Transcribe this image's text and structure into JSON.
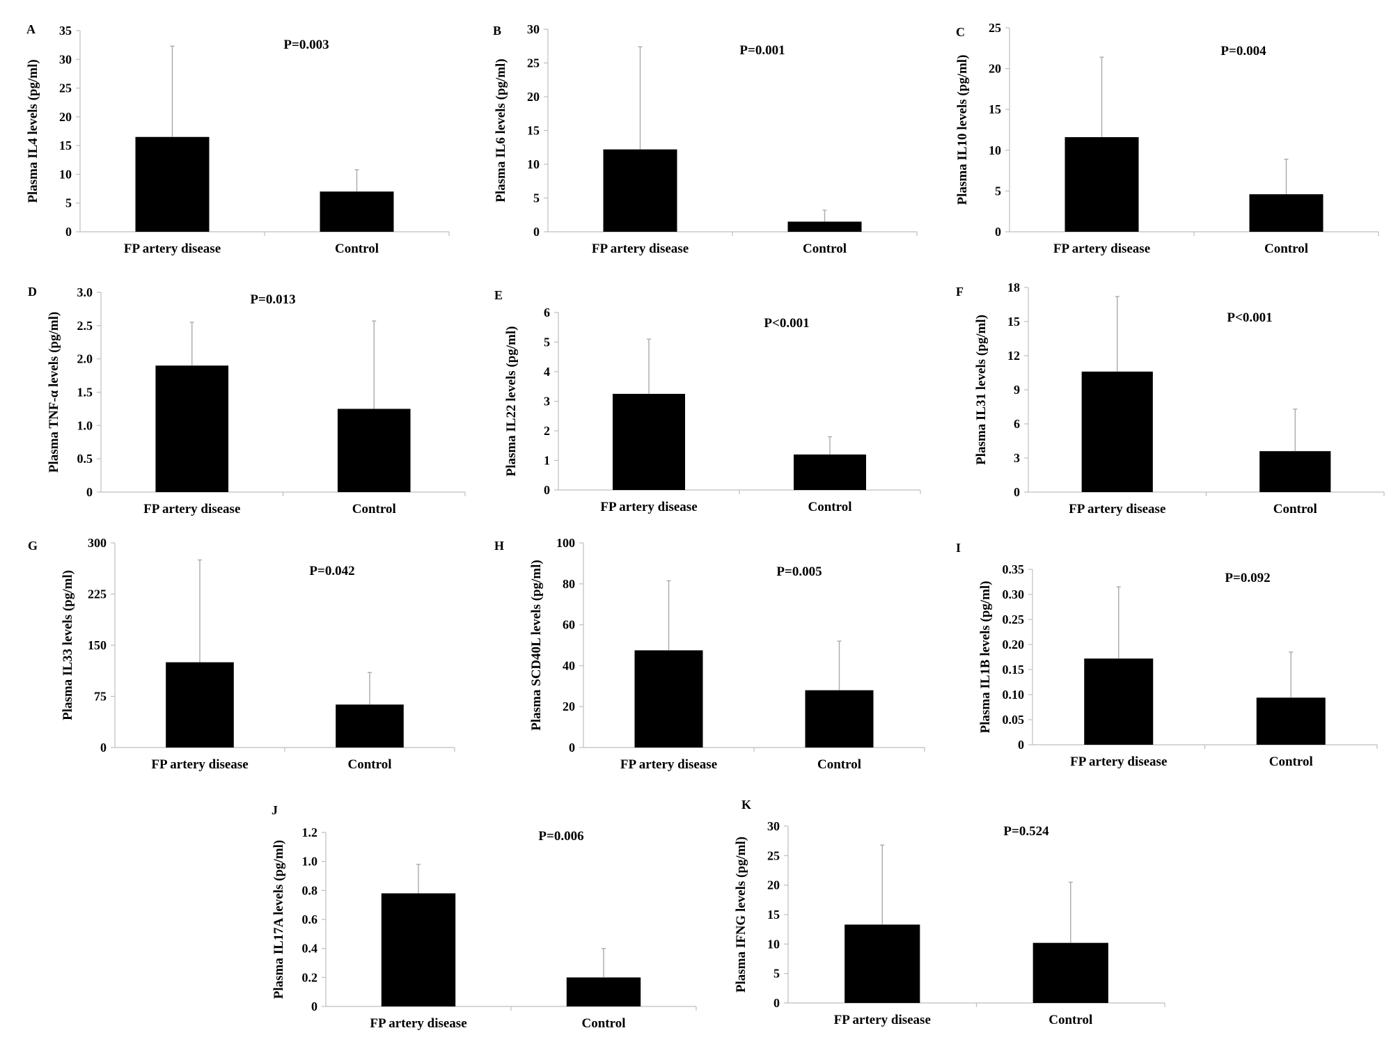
{
  "chart_data": [
    {
      "type": "bar",
      "panel": "A",
      "categories": [
        "FP artery disease",
        "Control"
      ],
      "values": [
        16.5,
        7.0
      ],
      "errors": [
        15.8,
        3.8
      ],
      "ylabel": "Plasma IL4 levels (pg/ml)",
      "annotation": "P=0.003",
      "ylim": [
        0,
        35
      ],
      "yticks": [
        "0",
        "5",
        "10",
        "15",
        "20",
        "25",
        "30",
        "35"
      ],
      "grid": false,
      "legend": false
    },
    {
      "type": "bar",
      "panel": "B",
      "categories": [
        "FP artery disease",
        "Control"
      ],
      "values": [
        12.2,
        1.5
      ],
      "errors": [
        15.2,
        1.7
      ],
      "ylabel": "Plasma IL6 levels (pg/ml)",
      "annotation": "P=0.001",
      "ylim": [
        0,
        30
      ],
      "yticks": [
        "0",
        "5",
        "10",
        "15",
        "20",
        "25",
        "30"
      ],
      "grid": false,
      "legend": false
    },
    {
      "type": "bar",
      "panel": "C",
      "categories": [
        "FP artery disease",
        "Control"
      ],
      "values": [
        11.6,
        4.6
      ],
      "errors": [
        9.8,
        4.3
      ],
      "ylabel": "Plasma IL10 levels (pg/ml)",
      "annotation": "P=0.004",
      "ylim": [
        0,
        25
      ],
      "yticks": [
        "0",
        "5",
        "10",
        "15",
        "20",
        "25"
      ],
      "grid": false,
      "legend": false
    },
    {
      "type": "bar",
      "panel": "D",
      "categories": [
        "FP artery disease",
        "Control"
      ],
      "values": [
        1.9,
        1.25
      ],
      "errors": [
        0.65,
        1.32
      ],
      "ylabel": "Plasma TNF-α levels (pg/ml)",
      "annotation": "P=0.013",
      "ylim": [
        0,
        3
      ],
      "yticks": [
        "0",
        "0.5",
        "1.0",
        "1.5",
        "2.0",
        "2.5",
        "3.0"
      ],
      "grid": false,
      "legend": false
    },
    {
      "type": "bar",
      "panel": "E",
      "categories": [
        "FP artery disease",
        "Control"
      ],
      "values": [
        3.25,
        1.2
      ],
      "errors": [
        1.85,
        0.6
      ],
      "ylabel": "Plasma IL22 levels (pg/ml)",
      "annotation": "P<0.001",
      "ylim": [
        0,
        6
      ],
      "yticks": [
        "0",
        "1",
        "2",
        "3",
        "4",
        "5",
        "6"
      ],
      "grid": false,
      "legend": false
    },
    {
      "type": "bar",
      "panel": "F",
      "categories": [
        "FP artery disease",
        "Control"
      ],
      "values": [
        10.6,
        3.6
      ],
      "errors": [
        6.6,
        3.7
      ],
      "ylabel": "Plasma IL31 levels (pg/ml)",
      "annotation": "P<0.001",
      "ylim": [
        0,
        18
      ],
      "yticks": [
        "0",
        "3",
        "6",
        "9",
        "12",
        "15",
        "18"
      ],
      "grid": false,
      "legend": false
    },
    {
      "type": "bar",
      "panel": "G",
      "categories": [
        "FP artery disease",
        "Control"
      ],
      "values": [
        125,
        63
      ],
      "errors": [
        150,
        47
      ],
      "ylabel": "Plasma IL33 levels (pg/ml)",
      "annotation": "P=0.042",
      "ylim": [
        0,
        300
      ],
      "yticks": [
        "0",
        "75",
        "150",
        "225",
        "300"
      ],
      "grid": false,
      "legend": false
    },
    {
      "type": "bar",
      "panel": "H",
      "categories": [
        "FP artery disease",
        "Control"
      ],
      "values": [
        47.5,
        28
      ],
      "errors": [
        34,
        24
      ],
      "ylabel": "Plasma SCD40L levels (pg/ml)",
      "annotation": "P=0.005",
      "ylim": [
        0,
        100
      ],
      "yticks": [
        "0",
        "20",
        "40",
        "60",
        "80",
        "100"
      ],
      "grid": false,
      "legend": false
    },
    {
      "type": "bar",
      "panel": "I",
      "categories": [
        "FP artery disease",
        "Control"
      ],
      "values": [
        0.172,
        0.094
      ],
      "errors": [
        0.143,
        0.091
      ],
      "ylabel": "Plasma IL1B levels (pg/ml)",
      "annotation": "P=0.092",
      "ylim": [
        0,
        0.35
      ],
      "yticks": [
        "0",
        "0.05",
        "0.10",
        "0.15",
        "0.20",
        "0.25",
        "0.30",
        "0.35"
      ],
      "grid": false,
      "legend": false
    },
    {
      "type": "bar",
      "panel": "J",
      "categories": [
        "FP artery disease",
        "Control"
      ],
      "values": [
        0.78,
        0.2
      ],
      "errors": [
        0.2,
        0.2
      ],
      "ylabel": "Plasma IL17A levels (pg/ml)",
      "annotation": "P=0.006",
      "ylim": [
        0,
        1.2
      ],
      "yticks": [
        "0",
        "0.2",
        "0.4",
        "0.6",
        "0.8",
        "1.0",
        "1.2"
      ],
      "grid": false,
      "legend": false
    },
    {
      "type": "bar",
      "panel": "K",
      "categories": [
        "FP artery disease",
        "Control"
      ],
      "values": [
        13.3,
        10.2
      ],
      "errors": [
        13.5,
        10.3
      ],
      "ylabel": "Plasma IFNG levels (pg/ml)",
      "annotation": "P=0.524",
      "ylim": [
        0,
        30
      ],
      "yticks": [
        "0",
        "5",
        "10",
        "15",
        "20",
        "25",
        "30"
      ],
      "grid": false,
      "legend": false
    }
  ]
}
